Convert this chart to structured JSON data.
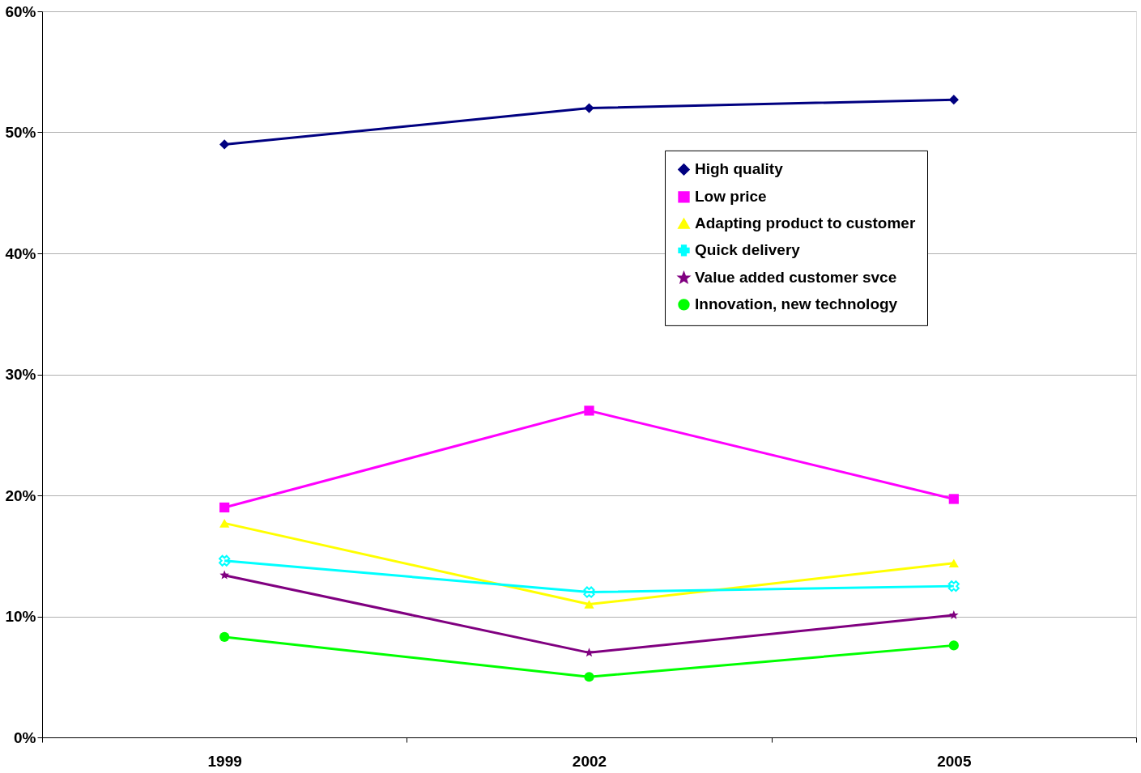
{
  "chart_data": {
    "type": "line",
    "categories": [
      "1999",
      "2002",
      "2005"
    ],
    "series": [
      {
        "name": "High quality",
        "color": "#000080",
        "marker": "diamond",
        "values": [
          49.0,
          52.0,
          52.7
        ]
      },
      {
        "name": "Low price",
        "color": "#ff00ff",
        "marker": "square",
        "values": [
          19.0,
          27.0,
          19.7
        ]
      },
      {
        "name": "Adapting product to customer",
        "color": "#ffff00",
        "marker": "triangle",
        "values": [
          17.7,
          11.0,
          14.4
        ]
      },
      {
        "name": "Quick delivery",
        "color": "#00ffff",
        "marker": "cross",
        "values": [
          14.6,
          12.0,
          12.5
        ]
      },
      {
        "name": "Value added customer svce",
        "color": "#800080",
        "marker": "star",
        "values": [
          13.4,
          7.0,
          10.1
        ]
      },
      {
        "name": "Innovation, new technology",
        "color": "#00ff00",
        "marker": "circle",
        "values": [
          8.3,
          5.0,
          7.6
        ]
      }
    ],
    "ylim": [
      0,
      60
    ],
    "yticks": [
      {
        "value": 0,
        "label": "0%"
      },
      {
        "value": 10,
        "label": "10%"
      },
      {
        "value": 20,
        "label": "20%"
      },
      {
        "value": 30,
        "label": "30%"
      },
      {
        "value": 40,
        "label": "40%"
      },
      {
        "value": 50,
        "label": "50%"
      },
      {
        "value": 60,
        "label": "60%"
      }
    ],
    "grid": "y",
    "legend": "top right",
    "line_style": "solid"
  }
}
